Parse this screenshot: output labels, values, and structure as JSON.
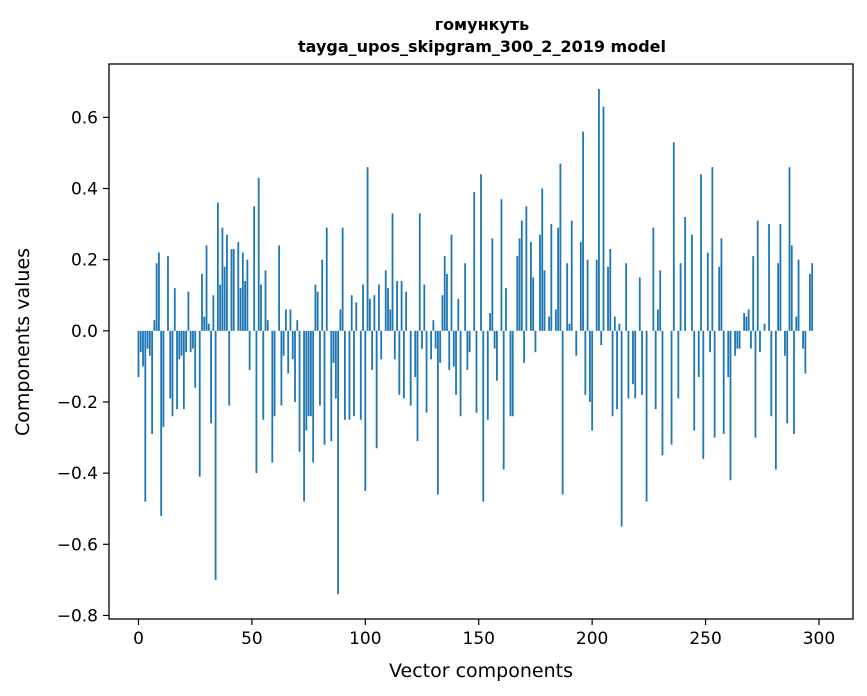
{
  "chart_data": {
    "type": "bar",
    "title": [
      "гомункуть",
      "tayga_upos_skipgram_300_2_2019 model"
    ],
    "xlabel": "Vector components",
    "ylabel": "Components values",
    "xlim": [
      -13,
      315
    ],
    "ylim": [
      -0.81,
      0.75
    ],
    "xticks": [
      0,
      50,
      100,
      150,
      200,
      250,
      300
    ],
    "xtick_labels": [
      "0",
      "50",
      "100",
      "150",
      "200",
      "250",
      "300"
    ],
    "yticks": [
      -0.8,
      -0.6,
      -0.4,
      -0.2,
      0.0,
      0.2,
      0.4,
      0.6
    ],
    "ytick_labels": [
      "−0.8",
      "−0.6",
      "−0.4",
      "−0.2",
      "0.0",
      "0.2",
      "0.4",
      "0.6"
    ],
    "grid": false,
    "bar_color": "#1f77b4",
    "x_start": 0,
    "values": [
      -0.13,
      -0.06,
      -0.1,
      -0.48,
      -0.05,
      -0.07,
      -0.29,
      0.03,
      0.19,
      0.22,
      -0.52,
      -0.27,
      0.0,
      0.21,
      -0.19,
      -0.24,
      0.12,
      -0.22,
      -0.08,
      -0.07,
      -0.22,
      -0.06,
      0.11,
      -0.06,
      -0.05,
      -0.16,
      0.0,
      -0.41,
      0.16,
      0.04,
      0.24,
      0.02,
      -0.26,
      0.1,
      -0.7,
      0.36,
      0.13,
      0.29,
      0.18,
      0.27,
      -0.21,
      0.23,
      0.23,
      0.0,
      0.25,
      0.12,
      0.22,
      0.14,
      0.2,
      -0.11,
      0.0,
      0.35,
      -0.4,
      0.43,
      0.13,
      -0.25,
      0.17,
      0.03,
      0.0,
      -0.37,
      -0.24,
      0.0,
      0.24,
      -0.21,
      -0.07,
      0.06,
      -0.12,
      0.06,
      -0.08,
      -0.2,
      0.03,
      -0.34,
      0.0,
      -0.48,
      -0.28,
      -0.24,
      -0.24,
      -0.37,
      0.13,
      0.11,
      -0.21,
      0.2,
      -0.32,
      0.29,
      0.0,
      -0.31,
      -0.09,
      -0.19,
      -0.74,
      0.06,
      0.29,
      -0.25,
      0.0,
      -0.25,
      0.1,
      -0.24,
      0.08,
      0.0,
      -0.25,
      0.13,
      -0.45,
      0.46,
      0.09,
      -0.11,
      0.1,
      -0.33,
      0.13,
      -0.08,
      0.0,
      0.17,
      0.12,
      0.06,
      0.33,
      -0.08,
      0.14,
      -0.18,
      0.14,
      -0.19,
      0.11,
      0.0,
      -0.21,
      0.0,
      -0.13,
      -0.31,
      0.33,
      -0.05,
      0.13,
      -0.23,
      0.0,
      -0.08,
      0.03,
      -0.05,
      -0.46,
      -0.09,
      0.1,
      0.21,
      0.16,
      -0.11,
      0.27,
      -0.1,
      -0.18,
      0.09,
      -0.24,
      0.0,
      0.19,
      -0.11,
      -0.06,
      0.0,
      0.39,
      -0.23,
      0.0,
      0.44,
      -0.48,
      0.0,
      -0.25,
      0.05,
      0.26,
      -0.05,
      -0.14,
      0.0,
      0.37,
      -0.39,
      0.12,
      0.0,
      -0.24,
      -0.24,
      0.0,
      0.21,
      0.26,
      0.31,
      -0.09,
      0.35,
      0.0,
      0.25,
      0.15,
      -0.06,
      0.0,
      0.27,
      0.4,
      0.17,
      0.0,
      0.04,
      0.3,
      0.0,
      0.06,
      0.29,
      0.47,
      -0.46,
      0.0,
      0.19,
      0.02,
      0.31,
      0.0,
      -0.07,
      0.0,
      0.25,
      0.56,
      -0.18,
      0.2,
      -0.2,
      -0.28,
      0.0,
      0.2,
      0.68,
      -0.04,
      0.63,
      0.0,
      0.18,
      0.23,
      -0.24,
      0.04,
      -0.22,
      0.02,
      -0.55,
      0.0,
      0.19,
      -0.19,
      0.0,
      -0.15,
      -0.19,
      0.0,
      0.15,
      -0.18,
      0.0,
      -0.48,
      0.0,
      0.0,
      0.29,
      -0.22,
      0.06,
      0.17,
      -0.35,
      0.0,
      0.0,
      0.0,
      -0.32,
      0.53,
      0.0,
      -0.19,
      0.19,
      0.0,
      0.32,
      0.0,
      0.0,
      0.27,
      -0.28,
      0.0,
      -0.13,
      0.44,
      -0.36,
      0.0,
      0.22,
      -0.06,
      0.46,
      -0.3,
      0.0,
      0.18,
      0.26,
      -0.29,
      0.0,
      -0.13,
      -0.42,
      0.0,
      -0.07,
      -0.05,
      -0.05,
      0.0,
      0.05,
      0.04,
      0.06,
      -0.05,
      0.21,
      -0.3,
      0.31,
      -0.06,
      0.0,
      0.02,
      0.0,
      0.3,
      -0.24,
      0.0,
      -0.39,
      0.19,
      0.3,
      0.0,
      -0.07,
      -0.26,
      0.46,
      0.24,
      -0.29,
      0.04,
      0.2,
      0.0,
      -0.05,
      -0.12,
      0.0,
      0.16,
      0.19
    ]
  }
}
